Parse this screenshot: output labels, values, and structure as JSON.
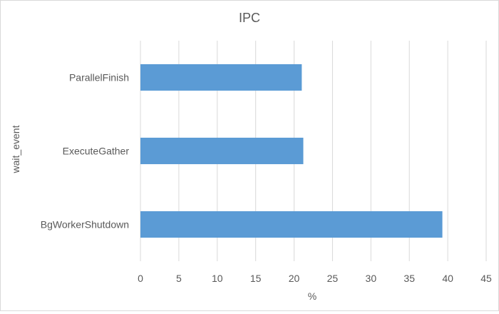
{
  "chart_data": {
    "type": "bar",
    "orientation": "horizontal",
    "title": "IPC",
    "xlabel": "%",
    "ylabel": "wait_event",
    "categories": [
      "ParallelFinish",
      "ExecuteGather",
      "BgWorkerShutdown"
    ],
    "values": [
      21.0,
      21.2,
      39.3
    ],
    "xlim": [
      0,
      45
    ],
    "xticks": [
      0,
      5,
      10,
      15,
      20,
      25,
      30,
      35,
      40,
      45
    ],
    "grid": "vertical",
    "legend": "none",
    "colors": {
      "bar": "#5b9bd5",
      "grid": "#d9d9d9",
      "text": "#595959"
    }
  }
}
